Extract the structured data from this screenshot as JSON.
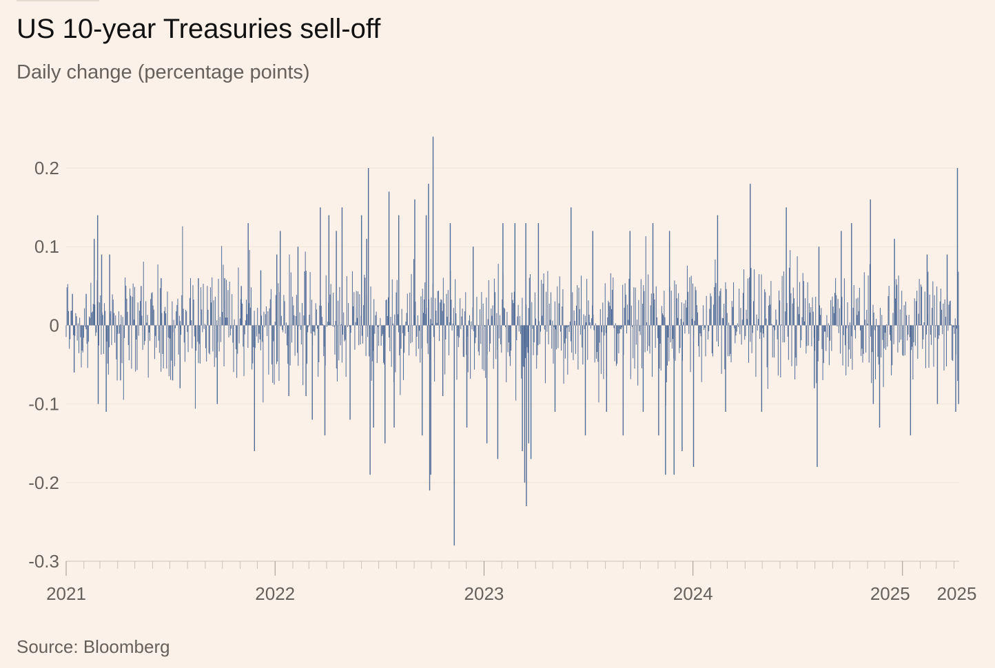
{
  "header": {
    "title": "US 10-year Treasuries sell-off",
    "subtitle": "Daily change (percentage points)"
  },
  "footer": {
    "source": "Source: Bloomberg"
  },
  "colors": {
    "background": "#fcf1e8",
    "bar": "#4e6a97",
    "gridline": "#f2e4d8",
    "axis": "#ccc1b7",
    "text": "#66605c"
  },
  "chart_data": {
    "type": "bar",
    "title": "US 10-year Treasuries sell-off",
    "subtitle": "Daily change (percentage points)",
    "xlabel": "",
    "ylabel": "",
    "x_range": [
      "2021-01-01",
      "2025-04-10"
    ],
    "ylim": [
      -0.3,
      0.24
    ],
    "y_ticks": [
      {
        "value": 0.2,
        "label": "0.2"
      },
      {
        "value": 0.1,
        "label": "0.1"
      },
      {
        "value": 0,
        "label": "0"
      },
      {
        "value": -0.1,
        "label": "-0.1"
      },
      {
        "value": -0.2,
        "label": "-0.2"
      },
      {
        "value": -0.3,
        "label": "-0.3"
      }
    ],
    "x_tick_labels": [
      {
        "date": "2021-01-01",
        "label": "2021"
      },
      {
        "date": "2022-01-01",
        "label": "2022"
      },
      {
        "date": "2023-01-01",
        "label": "2023"
      },
      {
        "date": "2024-01-01",
        "label": "2024"
      },
      {
        "date": "2025-01-01",
        "label": "2025"
      },
      {
        "date": "2025-04-01",
        "label": "2025"
      }
    ],
    "grid": true,
    "legend": "none",
    "series": [
      {
        "values": [
          {
            "x": "2021-01-12",
            "y": 0.04
          },
          {
            "x": "2021-01-15",
            "y": -0.06
          },
          {
            "x": "2021-02-05",
            "y": 0.04
          },
          {
            "x": "2021-02-19",
            "y": 0.11
          },
          {
            "x": "2021-02-25",
            "y": 0.14
          },
          {
            "x": "2021-02-26",
            "y": -0.1
          },
          {
            "x": "2021-03-04",
            "y": 0.09
          },
          {
            "x": "2021-03-12",
            "y": -0.11
          },
          {
            "x": "2021-03-18",
            "y": 0.09
          },
          {
            "x": "2021-04-06",
            "y": -0.07
          },
          {
            "x": "2021-05-12",
            "y": 0.05
          },
          {
            "x": "2021-06-16",
            "y": 0.06
          },
          {
            "x": "2021-07-06",
            "y": -0.07
          },
          {
            "x": "2021-07-19",
            "y": -0.08
          },
          {
            "x": "2021-08-20",
            "y": 0.06
          },
          {
            "x": "2021-09-22",
            "y": -0.1
          },
          {
            "x": "2021-10-05",
            "y": 0.06
          },
          {
            "x": "2021-11-03",
            "y": 0.05
          },
          {
            "x": "2021-11-15",
            "y": 0.13
          },
          {
            "x": "2021-11-26",
            "y": -0.16
          },
          {
            "x": "2021-12-07",
            "y": 0.07
          },
          {
            "x": "2022-01-04",
            "y": 0.09
          },
          {
            "x": "2022-01-10",
            "y": 0.12
          },
          {
            "x": "2022-01-25",
            "y": -0.09
          },
          {
            "x": "2022-02-10",
            "y": 0.1
          },
          {
            "x": "2022-02-24",
            "y": -0.09
          },
          {
            "x": "2022-03-07",
            "y": -0.12
          },
          {
            "x": "2022-03-21",
            "y": 0.15
          },
          {
            "x": "2022-03-29",
            "y": -0.14
          },
          {
            "x": "2022-04-05",
            "y": 0.14
          },
          {
            "x": "2022-04-18",
            "y": 0.12
          },
          {
            "x": "2022-04-28",
            "y": 0.15
          },
          {
            "x": "2022-05-12",
            "y": -0.12
          },
          {
            "x": "2022-06-01",
            "y": 0.14
          },
          {
            "x": "2022-06-10",
            "y": 0.11
          },
          {
            "x": "2022-06-13",
            "y": 0.2
          },
          {
            "x": "2022-06-16",
            "y": -0.19
          },
          {
            "x": "2022-06-22",
            "y": -0.13
          },
          {
            "x": "2022-07-12",
            "y": -0.15
          },
          {
            "x": "2022-07-19",
            "y": 0.17
          },
          {
            "x": "2022-07-28",
            "y": -0.13
          },
          {
            "x": "2022-08-05",
            "y": 0.14
          },
          {
            "x": "2022-09-02",
            "y": 0.16
          },
          {
            "x": "2022-09-15",
            "y": -0.14
          },
          {
            "x": "2022-09-22",
            "y": 0.14
          },
          {
            "x": "2022-09-26",
            "y": 0.18
          },
          {
            "x": "2022-09-28",
            "y": -0.21
          },
          {
            "x": "2022-09-30",
            "y": -0.19
          },
          {
            "x": "2022-10-04",
            "y": 0.24
          },
          {
            "x": "2022-10-21",
            "y": -0.09
          },
          {
            "x": "2022-11-03",
            "y": 0.13
          },
          {
            "x": "2022-11-10",
            "y": -0.28
          },
          {
            "x": "2022-12-02",
            "y": -0.13
          },
          {
            "x": "2022-12-13",
            "y": 0.1
          },
          {
            "x": "2023-01-06",
            "y": -0.15
          },
          {
            "x": "2023-01-25",
            "y": -0.17
          },
          {
            "x": "2023-02-03",
            "y": 0.13
          },
          {
            "x": "2023-02-24",
            "y": 0.13
          },
          {
            "x": "2023-03-09",
            "y": -0.16
          },
          {
            "x": "2023-03-13",
            "y": -0.2
          },
          {
            "x": "2023-03-15",
            "y": 0.13
          },
          {
            "x": "2023-03-16",
            "y": -0.23
          },
          {
            "x": "2023-03-20",
            "y": -0.15
          },
          {
            "x": "2023-03-24",
            "y": -0.17
          },
          {
            "x": "2023-04-06",
            "y": 0.13
          },
          {
            "x": "2023-05-05",
            "y": -0.11
          },
          {
            "x": "2023-06-02",
            "y": 0.15
          },
          {
            "x": "2023-06-27",
            "y": -0.14
          },
          {
            "x": "2023-07-10",
            "y": 0.12
          },
          {
            "x": "2023-08-03",
            "y": -0.11
          },
          {
            "x": "2023-09-01",
            "y": -0.14
          },
          {
            "x": "2023-09-13",
            "y": 0.12
          },
          {
            "x": "2023-10-06",
            "y": -0.11
          },
          {
            "x": "2023-10-23",
            "y": 0.13
          },
          {
            "x": "2023-11-02",
            "y": -0.14
          },
          {
            "x": "2023-11-14",
            "y": -0.19
          },
          {
            "x": "2023-11-21",
            "y": 0.12
          },
          {
            "x": "2023-11-29",
            "y": -0.19
          },
          {
            "x": "2023-12-13",
            "y": -0.16
          },
          {
            "x": "2024-01-02",
            "y": -0.18
          },
          {
            "x": "2024-02-13",
            "y": 0.14
          },
          {
            "x": "2024-02-27",
            "y": -0.11
          },
          {
            "x": "2024-04-10",
            "y": 0.18
          },
          {
            "x": "2024-04-30",
            "y": -0.11
          },
          {
            "x": "2024-06-12",
            "y": 0.15
          },
          {
            "x": "2024-07-31",
            "y": -0.08
          },
          {
            "x": "2024-08-05",
            "y": -0.18
          },
          {
            "x": "2024-08-08",
            "y": 0.1
          },
          {
            "x": "2024-09-16",
            "y": 0.12
          },
          {
            "x": "2024-10-04",
            "y": 0.13
          },
          {
            "x": "2024-11-06",
            "y": 0.16
          },
          {
            "x": "2024-11-11",
            "y": -0.1
          },
          {
            "x": "2024-11-22",
            "y": -0.13
          },
          {
            "x": "2024-12-18",
            "y": 0.11
          },
          {
            "x": "2025-01-15",
            "y": -0.14
          },
          {
            "x": "2025-02-13",
            "y": 0.09
          },
          {
            "x": "2025-03-03",
            "y": -0.1
          },
          {
            "x": "2025-03-20",
            "y": 0.09
          },
          {
            "x": "2025-04-04",
            "y": -0.11
          },
          {
            "x": "2025-04-07",
            "y": 0.2
          },
          {
            "x": "2025-04-09",
            "y": -0.1
          }
        ]
      }
    ]
  }
}
